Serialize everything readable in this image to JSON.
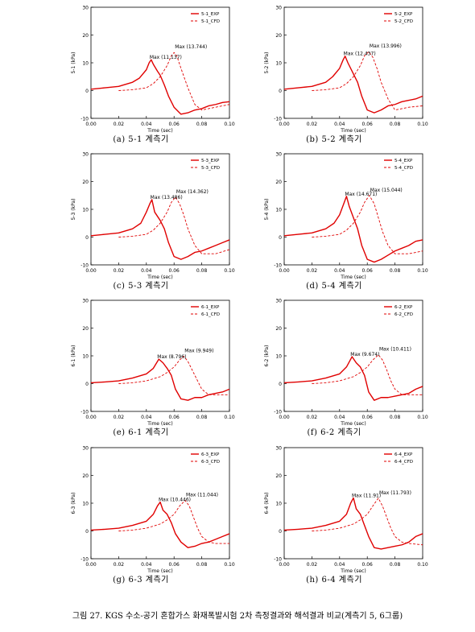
{
  "figure_caption": "그림 27. KGS 수소-공기 혼합가스 화재폭발시험 2차 측정결과와 해석결과 비교(계측기 5, 6그룹)",
  "chart_data": [
    {
      "type": "line",
      "caption": "(a) 5-1 계측기",
      "ylabel": "5-1 (kPa)",
      "xlabel": "Time (sec)",
      "xlim": [
        0,
        0.1
      ],
      "ylim": [
        -10,
        30
      ],
      "xticks": [
        "0.00",
        "0.02",
        "0.04",
        "0.06",
        "0.08",
        "0.10"
      ],
      "yticks": [
        "-10",
        "0",
        "10",
        "20",
        "30"
      ],
      "legend": [
        "5-1_EXP",
        "5-1_CFD"
      ],
      "exp_label": "Max (11.137)",
      "cfd_label": "Max (13.744)",
      "series": [
        {
          "name": "5-1_EXP",
          "style": "solid",
          "x": [
            0,
            0.01,
            0.02,
            0.03,
            0.035,
            0.04,
            0.042,
            0.0435,
            0.045,
            0.048,
            0.05,
            0.053,
            0.056,
            0.06,
            0.065,
            0.07,
            0.075,
            0.08,
            0.085,
            0.09,
            0.095,
            0.1
          ],
          "y": [
            0.5,
            1,
            1.5,
            3,
            4.5,
            7.5,
            10,
            11.1,
            9.5,
            7,
            5.5,
            2,
            -2,
            -6,
            -8.5,
            -8,
            -7,
            -6.5,
            -5.5,
            -5,
            -4.3,
            -4
          ]
        },
        {
          "name": "5-1_CFD",
          "style": "dashed",
          "x": [
            0.02,
            0.03,
            0.04,
            0.045,
            0.05,
            0.055,
            0.058,
            0.06,
            0.062,
            0.065,
            0.07,
            0.075,
            0.08,
            0.09,
            0.1
          ],
          "y": [
            0,
            0.3,
            1,
            2.5,
            5,
            9,
            12.5,
            13.7,
            12.5,
            8,
            1,
            -5,
            -7,
            -6,
            -5
          ]
        }
      ]
    },
    {
      "type": "line",
      "caption": "(b) 5-2 계측기",
      "ylabel": "5-2 (kPa)",
      "xlabel": "Time (sec)",
      "xlim": [
        0,
        0.1
      ],
      "ylim": [
        -10,
        30
      ],
      "xticks": [
        "0.00",
        "0.02",
        "0.04",
        "0.06",
        "0.08",
        "0.10"
      ],
      "yticks": [
        "-10",
        "0",
        "10",
        "20",
        "30"
      ],
      "legend": [
        "5-2_EXP",
        "5-2_CFD"
      ],
      "exp_label": "Max (12.437)",
      "cfd_label": "Max (13.996)",
      "series": [
        {
          "name": "5-2_EXP",
          "style": "solid",
          "x": [
            0,
            0.01,
            0.02,
            0.03,
            0.035,
            0.04,
            0.0425,
            0.044,
            0.046,
            0.05,
            0.053,
            0.056,
            0.06,
            0.065,
            0.07,
            0.075,
            0.08,
            0.085,
            0.09,
            0.095,
            0.1
          ],
          "y": [
            0.5,
            1,
            1.5,
            3,
            5,
            8,
            11,
            12.4,
            10,
            6,
            3,
            -2,
            -7,
            -8,
            -7,
            -5.5,
            -5,
            -4,
            -3.5,
            -3,
            -2
          ]
        },
        {
          "name": "5-2_CFD",
          "style": "dashed",
          "x": [
            0.02,
            0.03,
            0.04,
            0.045,
            0.05,
            0.055,
            0.058,
            0.061,
            0.064,
            0.067,
            0.07,
            0.075,
            0.08,
            0.09,
            0.1
          ],
          "y": [
            0,
            0.3,
            1,
            2.5,
            5,
            9,
            12.5,
            14,
            12,
            8,
            3,
            -3,
            -7,
            -6,
            -5.5
          ]
        }
      ]
    },
    {
      "type": "line",
      "caption": "(c) 5-3 계측기",
      "ylabel": "5-3 (kPa)",
      "xlabel": "Time (sec)",
      "xlim": [
        0,
        0.1
      ],
      "ylim": [
        -10,
        30
      ],
      "xticks": [
        "0.00",
        "0.02",
        "0.04",
        "0.06",
        "0.08",
        "0.10"
      ],
      "yticks": [
        "-10",
        "0",
        "10",
        "20",
        "30"
      ],
      "legend": [
        "5-3_EXP",
        "5-3_CFD"
      ],
      "exp_label": "Max (13.486)",
      "cfd_label": "Max (14.362)",
      "series": [
        {
          "name": "5-3_EXP",
          "style": "solid",
          "x": [
            0,
            0.01,
            0.02,
            0.03,
            0.036,
            0.04,
            0.0425,
            0.044,
            0.046,
            0.05,
            0.053,
            0.056,
            0.06,
            0.065,
            0.07,
            0.075,
            0.08,
            0.085,
            0.09,
            0.095,
            0.1
          ],
          "y": [
            0.5,
            1,
            1.5,
            3,
            5,
            9,
            12,
            13.5,
            9,
            6,
            3,
            -2,
            -7,
            -8,
            -7,
            -5.5,
            -5,
            -4,
            -3,
            -2,
            -1
          ]
        },
        {
          "name": "5-3_CFD",
          "style": "dashed",
          "x": [
            0.02,
            0.03,
            0.04,
            0.045,
            0.05,
            0.055,
            0.058,
            0.061,
            0.064,
            0.067,
            0.07,
            0.075,
            0.08,
            0.09,
            0.1
          ],
          "y": [
            0,
            0.3,
            1,
            2.5,
            5,
            9,
            12.5,
            14.4,
            12,
            8,
            3,
            -3,
            -6,
            -6,
            -4.5
          ]
        }
      ]
    },
    {
      "type": "line",
      "caption": "(d) 5-4 계측기",
      "ylabel": "5-4 (kPa)",
      "xlabel": "Time (sec)",
      "xlim": [
        0,
        0.1
      ],
      "ylim": [
        -10,
        30
      ],
      "xticks": [
        "0.00",
        "0.02",
        "0.04",
        "0.06",
        "0.08",
        "0.10"
      ],
      "yticks": [
        "-10",
        "0",
        "10",
        "20",
        "30"
      ],
      "legend": [
        "5-4_EXP",
        "5-4_CFD"
      ],
      "exp_label": "Max (14.671)",
      "cfd_label": "Max (15.044)",
      "series": [
        {
          "name": "5-4_EXP",
          "style": "solid",
          "x": [
            0,
            0.01,
            0.02,
            0.03,
            0.036,
            0.04,
            0.043,
            0.045,
            0.047,
            0.05,
            0.053,
            0.056,
            0.06,
            0.065,
            0.07,
            0.075,
            0.08,
            0.085,
            0.09,
            0.095,
            0.1
          ],
          "y": [
            0.5,
            1,
            1.5,
            3,
            5,
            8,
            12,
            14.7,
            11,
            7,
            3,
            -3,
            -8,
            -9,
            -8,
            -6.5,
            -5,
            -4,
            -3,
            -1.5,
            -1
          ]
        },
        {
          "name": "5-4_CFD",
          "style": "dashed",
          "x": [
            0.02,
            0.03,
            0.04,
            0.045,
            0.05,
            0.055,
            0.058,
            0.0615,
            0.065,
            0.068,
            0.071,
            0.075,
            0.08,
            0.09,
            0.1
          ],
          "y": [
            0,
            0.3,
            1,
            2.5,
            5,
            9,
            12.5,
            15,
            12,
            7,
            2,
            -3,
            -6,
            -6,
            -5
          ]
        }
      ]
    },
    {
      "type": "line",
      "caption": "(e) 6-1 계측기",
      "ylabel": "6-1 (kPa)",
      "xlabel": "Time (sec)",
      "xlim": [
        0,
        0.1
      ],
      "ylim": [
        -10,
        30
      ],
      "xticks": [
        "0.00",
        "0.02",
        "0.04",
        "0.06",
        "0.08",
        "0.10"
      ],
      "yticks": [
        "-10",
        "0",
        "10",
        "20",
        "30"
      ],
      "legend": [
        "6-1_EXP",
        "6-1_CFD"
      ],
      "exp_label": "Max (8.796)",
      "cfd_label": "Max (9.949)",
      "series": [
        {
          "name": "6-1_EXP",
          "style": "solid",
          "x": [
            0,
            0.01,
            0.02,
            0.03,
            0.04,
            0.045,
            0.049,
            0.052,
            0.055,
            0.058,
            0.061,
            0.065,
            0.07,
            0.075,
            0.08,
            0.085,
            0.09,
            0.095,
            0.1
          ],
          "y": [
            0.3,
            0.6,
            1,
            2,
            3.5,
            5.5,
            8.8,
            7.5,
            5.5,
            3,
            -2,
            -5.5,
            -6,
            -5,
            -5,
            -4,
            -3.5,
            -3,
            -2
          ]
        },
        {
          "name": "6-1_CFD",
          "style": "dashed",
          "x": [
            0.02,
            0.03,
            0.04,
            0.05,
            0.055,
            0.06,
            0.064,
            0.067,
            0.07,
            0.073,
            0.077,
            0.08,
            0.085,
            0.09,
            0.1
          ],
          "y": [
            0,
            0.3,
            1,
            2.5,
            4,
            6,
            8.5,
            9.9,
            8,
            5,
            1,
            -2,
            -4,
            -4,
            -4
          ]
        }
      ]
    },
    {
      "type": "line",
      "caption": "(f) 6-2 계측기",
      "ylabel": "6-2 (kPa)",
      "xlabel": "Time (sec)",
      "xlim": [
        0,
        0.1
      ],
      "ylim": [
        -10,
        30
      ],
      "xticks": [
        "0.00",
        "0.02",
        "0.04",
        "0.06",
        "0.08",
        "0.10"
      ],
      "yticks": [
        "-10",
        "0",
        "10",
        "20",
        "30"
      ],
      "legend": [
        "6-2_EXP",
        "6-2_CFD"
      ],
      "exp_label": "Max (9.674)",
      "cfd_label": "Max (10.411)",
      "series": [
        {
          "name": "6-2_EXP",
          "style": "solid",
          "x": [
            0,
            0.01,
            0.02,
            0.03,
            0.04,
            0.045,
            0.049,
            0.052,
            0.055,
            0.058,
            0.061,
            0.065,
            0.07,
            0.075,
            0.08,
            0.085,
            0.09,
            0.095,
            0.1
          ],
          "y": [
            0.3,
            0.6,
            1,
            2,
            3.5,
            6,
            9.7,
            7.5,
            6,
            3,
            -3,
            -6,
            -5,
            -5,
            -4.5,
            -4,
            -3.5,
            -2,
            -1
          ]
        },
        {
          "name": "6-2_CFD",
          "style": "dashed",
          "x": [
            0.02,
            0.03,
            0.04,
            0.05,
            0.055,
            0.06,
            0.064,
            0.068,
            0.071,
            0.074,
            0.077,
            0.08,
            0.085,
            0.09,
            0.1
          ],
          "y": [
            0,
            0.3,
            1,
            2.5,
            4,
            6,
            8.5,
            10.4,
            8.5,
            5,
            1,
            -2,
            -4,
            -4,
            -4
          ]
        }
      ]
    },
    {
      "type": "line",
      "caption": "(g) 6-3 계측기",
      "ylabel": "6-3 (kPa)",
      "xlabel": "Time (sec)",
      "xlim": [
        0,
        0.1
      ],
      "ylim": [
        -10,
        30
      ],
      "xticks": [
        "0.00",
        "0.02",
        "0.04",
        "0.06",
        "0.08",
        "0.10"
      ],
      "yticks": [
        "-10",
        "0",
        "10",
        "20",
        "30"
      ],
      "legend": [
        "6-3_EXP",
        "6-3_CFD"
      ],
      "exp_label": "Max (10.446)",
      "cfd_label": "Max (11.044)",
      "series": [
        {
          "name": "6-3_EXP",
          "style": "solid",
          "x": [
            0,
            0.01,
            0.02,
            0.03,
            0.04,
            0.045,
            0.048,
            0.05,
            0.052,
            0.055,
            0.058,
            0.061,
            0.065,
            0.07,
            0.075,
            0.08,
            0.085,
            0.09,
            0.095,
            0.1
          ],
          "y": [
            0.3,
            0.6,
            1,
            2,
            3.5,
            6,
            9,
            10.4,
            7.5,
            6,
            3,
            -1,
            -4,
            -6,
            -5.5,
            -4.5,
            -4,
            -3,
            -2,
            -1
          ]
        },
        {
          "name": "6-3_CFD",
          "style": "dashed",
          "x": [
            0.02,
            0.03,
            0.04,
            0.05,
            0.055,
            0.06,
            0.064,
            0.068,
            0.071,
            0.074,
            0.077,
            0.08,
            0.085,
            0.09,
            0.1
          ],
          "y": [
            0,
            0.3,
            1,
            2.5,
            4,
            6,
            9,
            11,
            9,
            5,
            1,
            -2,
            -4,
            -4.5,
            -4.5
          ]
        }
      ]
    },
    {
      "type": "line",
      "caption": "(h) 6-4 계측기",
      "ylabel": "6-4 (kPa)",
      "xlabel": "Time (sec)",
      "xlim": [
        0,
        0.1
      ],
      "ylim": [
        -10,
        30
      ],
      "xticks": [
        "0.00",
        "0.02",
        "0.04",
        "0.06",
        "0.08",
        "0.10"
      ],
      "yticks": [
        "-10",
        "0",
        "10",
        "20",
        "30"
      ],
      "legend": [
        "6-4_EXP",
        "6-4_CFD"
      ],
      "exp_label": "Max (11.91)",
      "cfd_label": "Max (11.793)",
      "series": [
        {
          "name": "6-4_EXP",
          "style": "solid",
          "x": [
            0,
            0.01,
            0.02,
            0.03,
            0.04,
            0.045,
            0.048,
            0.05,
            0.052,
            0.055,
            0.058,
            0.061,
            0.065,
            0.07,
            0.075,
            0.08,
            0.085,
            0.09,
            0.095,
            0.1
          ],
          "y": [
            0.3,
            0.6,
            1,
            2,
            3.5,
            6,
            10,
            11.9,
            8,
            6,
            2,
            -2,
            -6,
            -6.5,
            -6,
            -5.5,
            -5,
            -4,
            -2,
            -1
          ]
        },
        {
          "name": "6-4_CFD",
          "style": "dashed",
          "x": [
            0.02,
            0.03,
            0.04,
            0.05,
            0.055,
            0.06,
            0.064,
            0.068,
            0.071,
            0.074,
            0.077,
            0.08,
            0.085,
            0.09,
            0.1
          ],
          "y": [
            0,
            0.3,
            1,
            2.5,
            4,
            6,
            9,
            11.8,
            9,
            5,
            1,
            -2,
            -4,
            -4.5,
            -5
          ]
        }
      ]
    }
  ]
}
